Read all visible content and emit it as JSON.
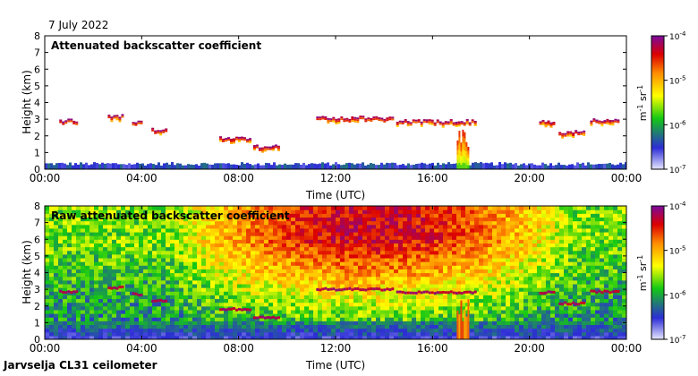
{
  "date": "7 July 2022",
  "footer": "Jarvselja CL31 ceilometer",
  "colorbar": {
    "ticks": [
      "10",
      "10",
      "10",
      "10"
    ],
    "exponents": [
      "-4",
      "-5",
      "-6",
      "-7"
    ],
    "values": [
      0.0001,
      1e-05,
      1e-06,
      1e-07
    ],
    "unit_m": "m",
    "unit_m_exp": "-1",
    "unit_sr": "sr",
    "unit_sr_exp": "-1",
    "scale": "log",
    "colors": [
      "#e6e6ff",
      "#2d2dd6",
      "#14c814",
      "#ffff00",
      "#ff8c00",
      "#dc0000",
      "#7a0a9e"
    ]
  },
  "chart_data": [
    {
      "type": "heatmap",
      "title": "Attenuated backscatter coefficient",
      "xlabel": "Time (UTC)",
      "ylabel": "Height (km)",
      "xticks": [
        "00:00",
        "04:00",
        "08:00",
        "12:00",
        "16:00",
        "20:00",
        "00:00"
      ],
      "xlim_hours": [
        0,
        24
      ],
      "yticks": [
        "0",
        "1",
        "2",
        "3",
        "4",
        "5",
        "6",
        "7",
        "8"
      ],
      "ylim": [
        0,
        8
      ],
      "log_color_scale": true,
      "cloud_layers": [
        {
          "start_h": 0.6,
          "end_h": 1.3,
          "height_km": 2.85
        },
        {
          "start_h": 2.6,
          "end_h": 3.2,
          "height_km": 3.1
        },
        {
          "start_h": 3.6,
          "end_h": 4.0,
          "height_km": 2.7
        },
        {
          "start_h": 4.4,
          "end_h": 5.0,
          "height_km": 2.3
        },
        {
          "start_h": 7.2,
          "end_h": 8.5,
          "height_km": 1.8
        },
        {
          "start_h": 8.6,
          "end_h": 9.6,
          "height_km": 1.3
        },
        {
          "start_h": 11.2,
          "end_h": 14.4,
          "height_km": 3.0
        },
        {
          "start_h": 14.5,
          "end_h": 17.8,
          "height_km": 2.8
        },
        {
          "start_h": 20.4,
          "end_h": 21.0,
          "height_km": 2.8
        },
        {
          "start_h": 21.2,
          "end_h": 22.2,
          "height_km": 2.15
        },
        {
          "start_h": 22.5,
          "end_h": 23.7,
          "height_km": 2.85
        }
      ],
      "precipitation": [
        {
          "start_h": 17.0,
          "end_h": 17.5,
          "top_km": 2.6
        }
      ]
    },
    {
      "type": "heatmap",
      "title": "Raw attenuated backscatter coefficient",
      "xlabel": "Time (UTC)",
      "ylabel": "Height (km)",
      "xticks": [
        "00:00",
        "04:00",
        "08:00",
        "12:00",
        "16:00",
        "20:00",
        "00:00"
      ],
      "xlim_hours": [
        0,
        24
      ],
      "yticks": [
        "0",
        "1",
        "2",
        "3",
        "4",
        "5",
        "6",
        "7",
        "8"
      ],
      "ylim": [
        0,
        8
      ],
      "log_color_scale": true
    }
  ]
}
